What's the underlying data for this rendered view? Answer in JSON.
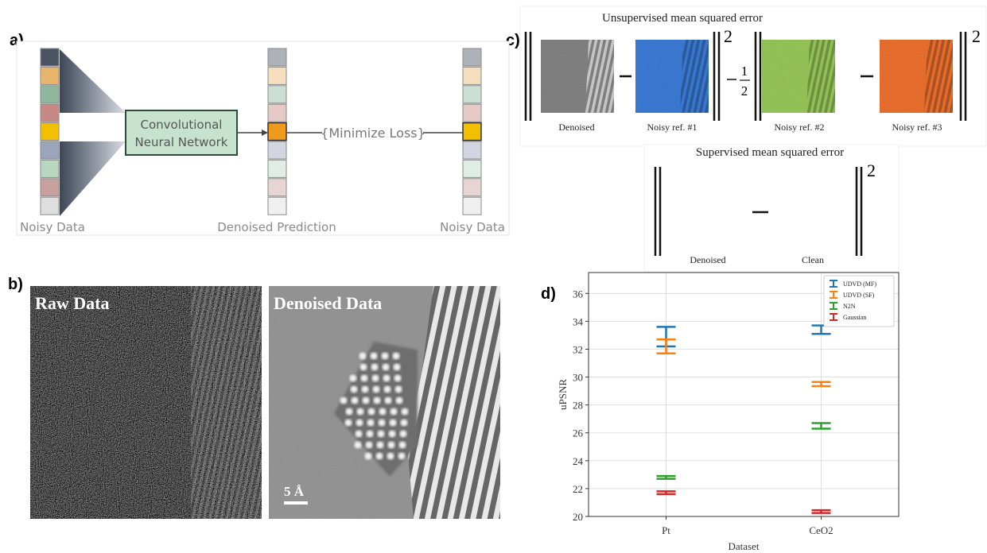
{
  "panel_labels": [
    "a)",
    "b)",
    "c)",
    "d)"
  ],
  "panel_a": {
    "cnn_label": [
      "Convolutional",
      "Neural Network"
    ],
    "loss_label": "{Minimize Loss}",
    "column_labels": [
      "Noisy Data",
      "Denoised Prediction",
      "Noisy Data"
    ]
  },
  "panel_b": {
    "image_labels": [
      "Raw Data",
      "Denoised Data"
    ],
    "scale_bar": "5 Å"
  },
  "panel_c": {
    "unsupervised": {
      "title": "Unsupervised mean squared error",
      "captions": [
        "Denoised",
        "Noisy ref. #1",
        "Noisy ref. #2",
        "Noisy ref. #3"
      ],
      "exponent": "2",
      "coefficient": [
        "1",
        "2"
      ]
    },
    "supervised": {
      "title": "Supervised mean squared error",
      "captions": [
        "Denoised",
        "Clean"
      ],
      "exponent": "2"
    }
  },
  "chart_data": {
    "type": "errorbar",
    "categories": [
      "Pt",
      "CeO2"
    ],
    "series": [
      {
        "name": "UDVD (MF)",
        "color": "#1f77b4",
        "values": [
          32.9,
          33.4
        ],
        "errors": [
          0.7,
          0.3
        ]
      },
      {
        "name": "UDVD (SF)",
        "color": "#ff7f0e",
        "values": [
          32.2,
          29.5
        ],
        "errors": [
          0.5,
          0.15
        ]
      },
      {
        "name": "N2N",
        "color": "#2ca02c",
        "values": [
          22.8,
          26.5
        ],
        "errors": [
          0.1,
          0.2
        ]
      },
      {
        "name": "Gaussian",
        "color": "#d62728",
        "values": [
          21.7,
          20.35
        ],
        "errors": [
          0.1,
          0.1
        ]
      }
    ],
    "xlabel": "Dataset",
    "ylabel": "uPSNR",
    "ylim": [
      20,
      37.5
    ],
    "yticks": [
      20,
      22,
      24,
      26,
      28,
      30,
      32,
      34,
      36
    ],
    "grid": true,
    "legend": "upper right"
  }
}
